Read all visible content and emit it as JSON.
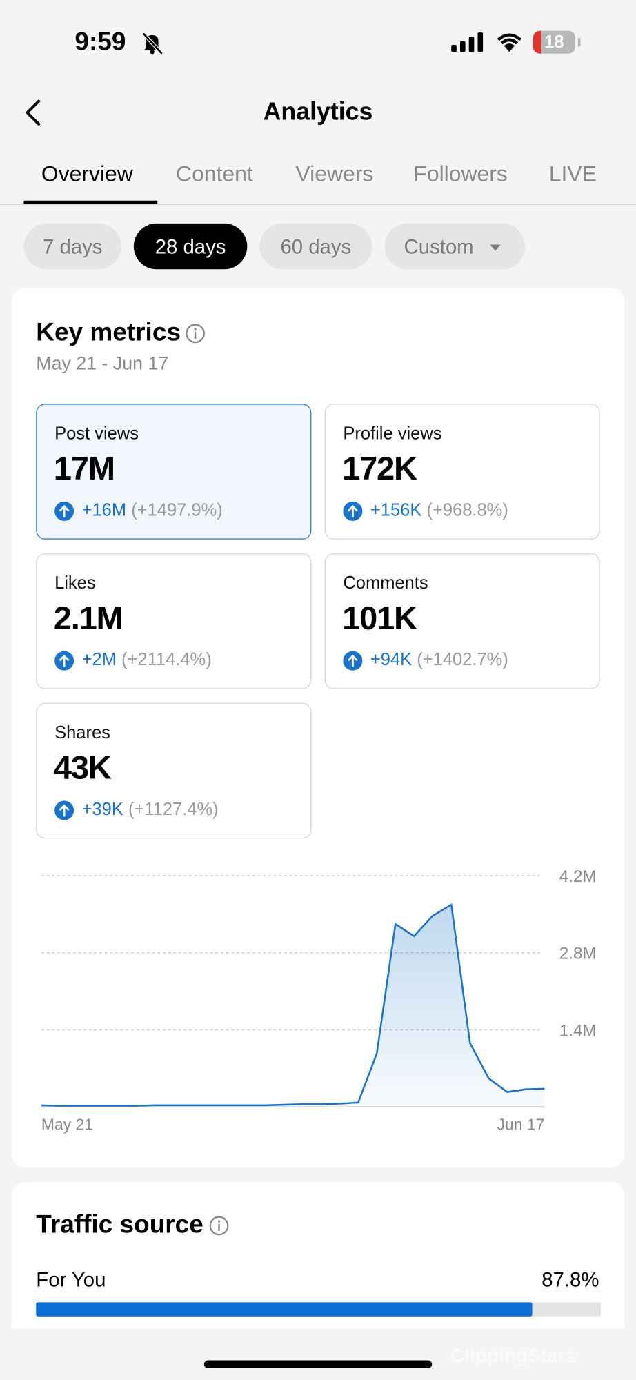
{
  "status_bar": {
    "time": "9:59",
    "battery": "18"
  },
  "header": {
    "title": "Analytics"
  },
  "tabs": [
    "Overview",
    "Content",
    "Viewers",
    "Followers",
    "LIVE"
  ],
  "periods": [
    "7 days",
    "28 days",
    "60 days",
    "Custom"
  ],
  "key_metrics": {
    "title": "Key metrics",
    "date_range": "May 21 - Jun 17",
    "cards": [
      {
        "label": "Post views",
        "value": "17M",
        "change": "+16M",
        "change_pct": "(+1497.9%)"
      },
      {
        "label": "Profile views",
        "value": "172K",
        "change": "+156K",
        "change_pct": "(+968.8%)"
      },
      {
        "label": "Likes",
        "value": "2.1M",
        "change": "+2M",
        "change_pct": "(+2114.4%)"
      },
      {
        "label": "Comments",
        "value": "101K",
        "change": "+94K",
        "change_pct": "(+1402.7%)"
      },
      {
        "label": "Shares",
        "value": "43K",
        "change": "+39K",
        "change_pct": "(+1127.4%)"
      }
    ]
  },
  "chart_data": {
    "type": "area",
    "color": "#1a73c8",
    "categories": [
      "May 21",
      null,
      null,
      null,
      null,
      null,
      null,
      null,
      null,
      null,
      null,
      null,
      null,
      null,
      null,
      null,
      null,
      null,
      null,
      null,
      null,
      null,
      null,
      null,
      null,
      null,
      null,
      "Jun 17"
    ],
    "values": [
      30000,
      20000,
      20000,
      20000,
      20000,
      20000,
      30000,
      30000,
      30000,
      30000,
      30000,
      30000,
      30000,
      40000,
      50000,
      50000,
      60000,
      80000,
      970000,
      3320000,
      3100000,
      3470000,
      3670000,
      1160000,
      520000,
      270000,
      320000,
      330000
    ],
    "ylim": [
      0,
      4200000
    ],
    "yticks": [
      {
        "value": 1400000,
        "label": "1.4M"
      },
      {
        "value": 2800000,
        "label": "2.8M"
      },
      {
        "value": 4200000,
        "label": "4.2M"
      }
    ],
    "grid": true
  },
  "traffic_source": {
    "title": "Traffic source",
    "items": [
      {
        "label": "For You",
        "value": 87.8,
        "value_label": "87.8%"
      }
    ]
  },
  "watermark": "ClippingStars"
}
